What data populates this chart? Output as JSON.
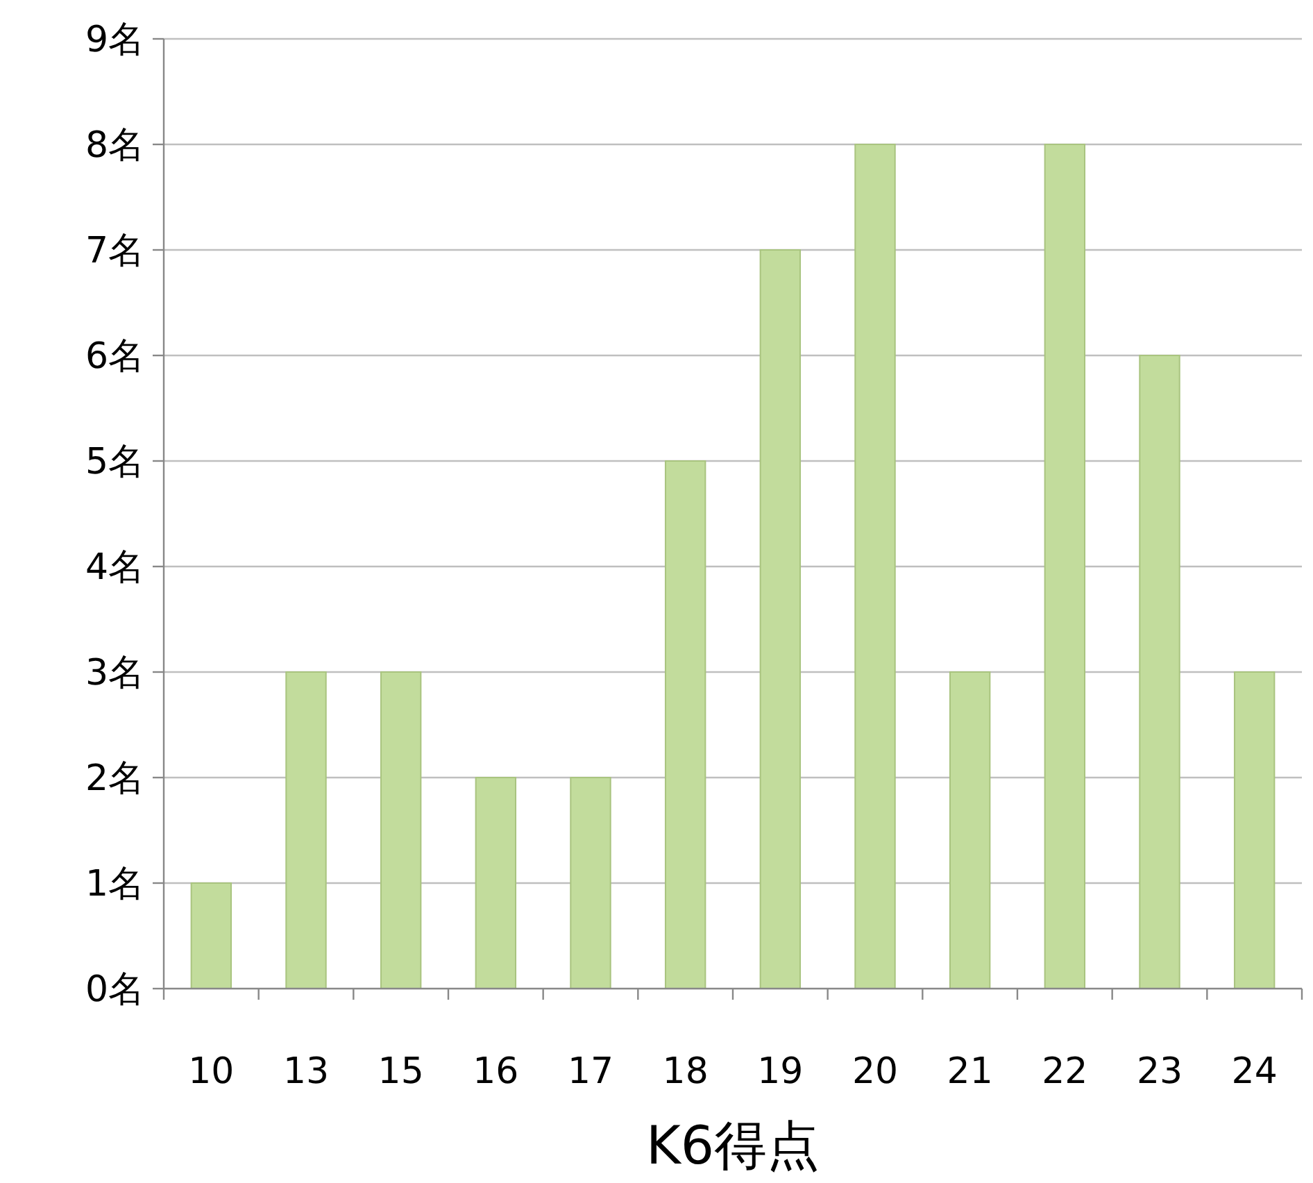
{
  "chart_data": {
    "type": "bar",
    "xlabel": "K6得点",
    "categories": [
      "10",
      "13",
      "15",
      "16",
      "17",
      "18",
      "19",
      "20",
      "21",
      "22",
      "23",
      "24"
    ],
    "values": [
      1,
      3,
      3,
      2,
      2,
      5,
      7,
      8,
      3,
      8,
      6,
      3
    ],
    "color": "#c2dc9c",
    "ylim": [
      0,
      9
    ],
    "yticks": [
      {
        "value": 0,
        "label": "0名"
      },
      {
        "value": 1,
        "label": "1名"
      },
      {
        "value": 2,
        "label": "2名"
      },
      {
        "value": 3,
        "label": "3名"
      },
      {
        "value": 4,
        "label": "4名"
      },
      {
        "value": 5,
        "label": "5名"
      },
      {
        "value": 6,
        "label": "6名"
      },
      {
        "value": 7,
        "label": "7名"
      },
      {
        "value": 8,
        "label": "8名"
      },
      {
        "value": 9,
        "label": "9名"
      }
    ],
    "grid": "y"
  }
}
